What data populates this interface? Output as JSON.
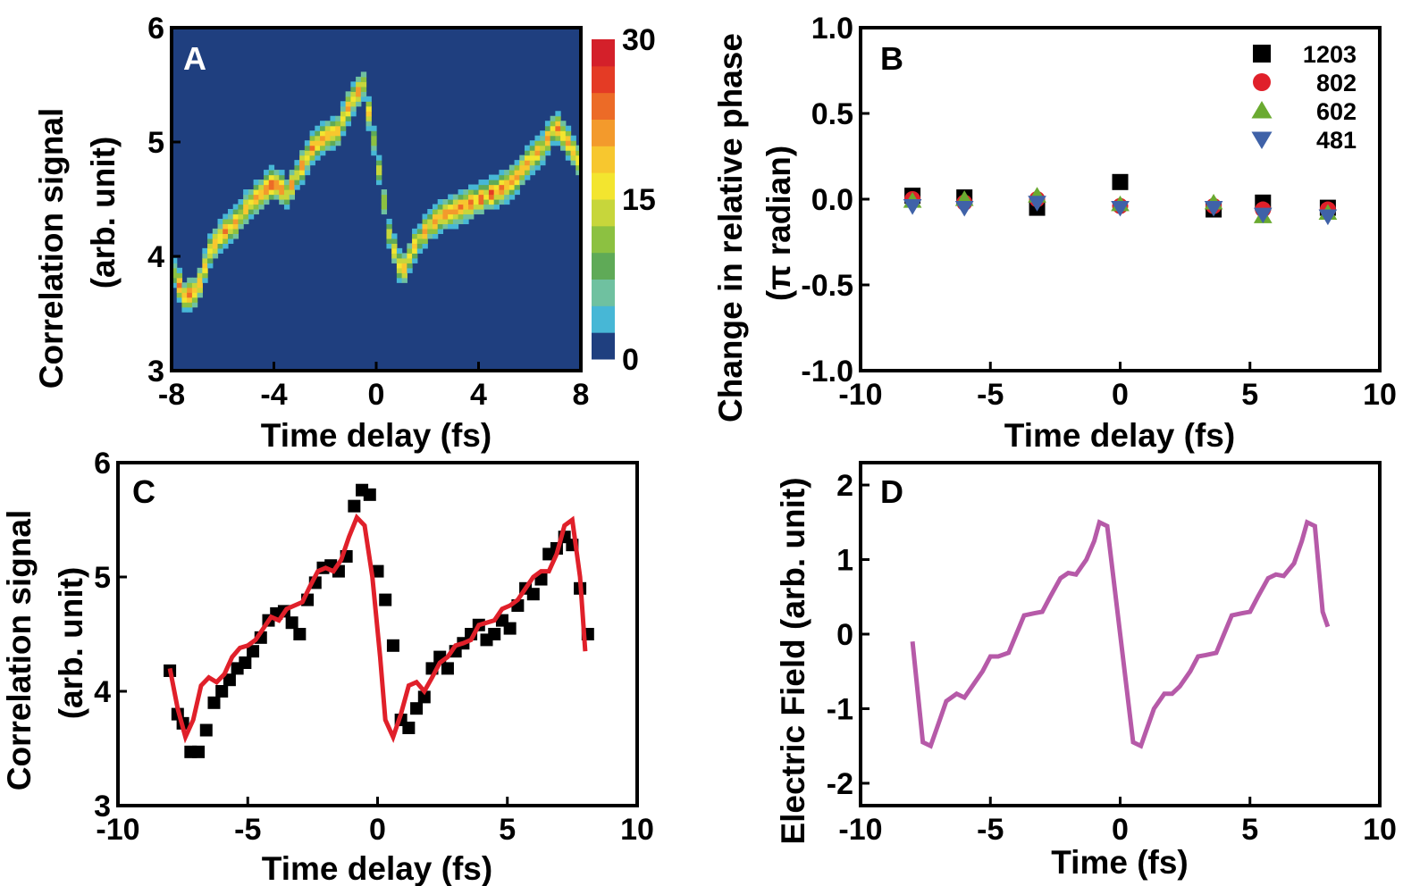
{
  "panels": {
    "A": {
      "label": "A"
    },
    "B": {
      "label": "B"
    },
    "C": {
      "label": "C"
    },
    "D": {
      "label": "D"
    }
  },
  "chart_data": [
    {
      "panel": "A",
      "type": "heatmap",
      "xlabel": "Time delay (fs)",
      "ylabel_line1": "Correlation signal",
      "ylabel_line2": "(arb. unit)",
      "xlim": [
        -8,
        8
      ],
      "ylim": [
        3,
        6
      ],
      "xticks": [
        "-8",
        "-4",
        "0",
        "4",
        "8"
      ],
      "yticks": [
        "3",
        "4",
        "5",
        "6"
      ],
      "colorbar": {
        "range": [
          0,
          30
        ],
        "ticks": [
          "0",
          "15",
          "30"
        ],
        "colors": [
          "#1f3f7f",
          "#47b7d6",
          "#6fc1a0",
          "#5faa57",
          "#8cc141",
          "#c7d63b",
          "#f3e52f",
          "#f7c72f",
          "#f39a2c",
          "#ec6b27",
          "#e43b25",
          "#d4202a"
        ]
      },
      "ridge": {
        "x": [
          -8,
          -7.5,
          -7,
          -6.5,
          -6,
          -5.5,
          -5,
          -4.5,
          -4,
          -3.5,
          -3,
          -2.5,
          -2,
          -1.5,
          -1,
          -0.5,
          0,
          0.5,
          1,
          1.5,
          2,
          2.5,
          3,
          3.5,
          4,
          4.5,
          5,
          5.5,
          6,
          6.5,
          7,
          7.5,
          8
        ],
        "y": [
          3.9,
          3.65,
          3.7,
          4.05,
          4.2,
          4.3,
          4.45,
          4.55,
          4.65,
          4.55,
          4.75,
          4.95,
          5.05,
          5.1,
          5.35,
          5.5,
          4.9,
          4.2,
          3.85,
          4.1,
          4.25,
          4.35,
          4.4,
          4.45,
          4.5,
          4.55,
          4.6,
          4.7,
          4.85,
          4.95,
          5.15,
          5.0,
          4.8
        ],
        "intensity": [
          18,
          26,
          22,
          20,
          24,
          22,
          20,
          23,
          28,
          21,
          22,
          24,
          22,
          20,
          23,
          21,
          14,
          16,
          22,
          20,
          22,
          23,
          24,
          25,
          25,
          26,
          24,
          24,
          22,
          21,
          24,
          22,
          20
        ]
      }
    },
    {
      "panel": "B",
      "type": "scatter",
      "xlabel": "Time delay (fs)",
      "ylabel_line1": "Change in relative phase",
      "ylabel_line2": "(π radian)",
      "xlim": [
        -10,
        10
      ],
      "ylim": [
        -1.0,
        1.0
      ],
      "xticks": [
        "-10",
        "-5",
        "0",
        "5",
        "10"
      ],
      "yticks": [
        "-1.0",
        "-0.5",
        "0.0",
        "0.5",
        "1.0"
      ],
      "legend_position": "top-right",
      "series": [
        {
          "name": "1203",
          "marker": "square",
          "color": "#000000",
          "x": [
            -8,
            -6,
            -3.2,
            0,
            3.6,
            5.5,
            8
          ],
          "y": [
            0.02,
            0.01,
            -0.05,
            0.1,
            -0.06,
            -0.02,
            -0.05
          ]
        },
        {
          "name": "802",
          "marker": "circle",
          "color": "#e0202a",
          "x": [
            -8,
            -6,
            -3.2,
            0,
            3.6,
            5.5,
            8
          ],
          "y": [
            0.0,
            -0.02,
            0.0,
            -0.04,
            -0.04,
            -0.06,
            -0.06
          ]
        },
        {
          "name": "602",
          "marker": "triangle-up",
          "color": "#6aaa30",
          "x": [
            -8,
            -6,
            -3.2,
            0,
            3.6,
            5.5,
            8
          ],
          "y": [
            -0.01,
            0.0,
            0.02,
            -0.03,
            -0.02,
            -0.1,
            -0.08
          ]
        },
        {
          "name": "481",
          "marker": "triangle-down",
          "color": "#3f62a8",
          "x": [
            -8,
            -6,
            -3.2,
            0,
            3.6,
            5.5,
            8
          ],
          "y": [
            -0.04,
            -0.05,
            -0.02,
            -0.05,
            -0.05,
            -0.09,
            -0.1
          ]
        }
      ]
    },
    {
      "panel": "C",
      "type": "scatter",
      "xlabel": "Time delay (fs)",
      "ylabel_line1": "Correlation signal",
      "ylabel_line2": "(arb. unit)",
      "xlim": [
        -10,
        10
      ],
      "ylim": [
        3,
        6
      ],
      "xticks": [
        "-10",
        "-5",
        "0",
        "5",
        "10"
      ],
      "yticks": [
        "3",
        "4",
        "5",
        "6"
      ],
      "series": [
        {
          "marker": "square",
          "color": "#000000",
          "x": [
            -8,
            -7.7,
            -7.5,
            -7.2,
            -6.9,
            -6.6,
            -6.3,
            -6,
            -5.7,
            -5.4,
            -5.1,
            -4.8,
            -4.5,
            -4.2,
            -3.9,
            -3.6,
            -3.3,
            -3,
            -2.7,
            -2.4,
            -2.1,
            -1.8,
            -1.5,
            -1.2,
            -0.9,
            -0.6,
            -0.3,
            0,
            0.3,
            0.6,
            0.9,
            1.2,
            1.5,
            1.8,
            2.1,
            2.4,
            2.7,
            3,
            3.3,
            3.6,
            3.9,
            4.2,
            4.5,
            4.8,
            5.1,
            5.4,
            5.7,
            6,
            6.3,
            6.6,
            6.9,
            7.2,
            7.5,
            7.8,
            8.1
          ],
          "y": [
            4.18,
            3.8,
            3.72,
            3.47,
            3.47,
            3.66,
            3.9,
            4.0,
            4.1,
            4.2,
            4.25,
            4.35,
            4.47,
            4.62,
            4.68,
            4.7,
            4.6,
            4.5,
            4.8,
            4.95,
            5.08,
            5.1,
            5.05,
            5.18,
            5.62,
            5.76,
            5.72,
            5.05,
            4.8,
            4.4,
            3.75,
            3.68,
            3.85,
            3.95,
            4.2,
            4.3,
            4.2,
            4.35,
            4.42,
            4.5,
            4.58,
            4.45,
            4.5,
            4.62,
            4.55,
            4.75,
            4.9,
            4.85,
            4.98,
            5.2,
            5.25,
            5.35,
            5.28,
            4.9,
            4.5
          ]
        },
        {
          "marker": "line",
          "color": "#e0202a",
          "x": [
            -8,
            -7.7,
            -7.4,
            -7.1,
            -6.8,
            -6.5,
            -6.2,
            -5.9,
            -5.6,
            -5.3,
            -5.0,
            -4.7,
            -4.4,
            -4.1,
            -3.8,
            -3.5,
            -3.2,
            -2.9,
            -2.6,
            -2.3,
            -2.0,
            -1.7,
            -1.4,
            -1.1,
            -0.8,
            -0.5,
            -0.2,
            0.1,
            0.3,
            0.6,
            0.9,
            1.2,
            1.5,
            1.8,
            2.1,
            2.4,
            2.7,
            3.0,
            3.3,
            3.6,
            3.9,
            4.2,
            4.5,
            4.8,
            5.1,
            5.4,
            5.7,
            6.0,
            6.3,
            6.6,
            6.9,
            7.2,
            7.5,
            7.8,
            8.0
          ],
          "y": [
            4.2,
            3.85,
            3.6,
            3.75,
            4.05,
            4.12,
            4.08,
            4.15,
            4.3,
            4.38,
            4.4,
            4.45,
            4.55,
            4.65,
            4.62,
            4.72,
            4.75,
            4.78,
            4.92,
            5.05,
            5.08,
            5.05,
            5.15,
            5.35,
            5.52,
            5.45,
            5.0,
            4.3,
            3.75,
            3.6,
            3.8,
            4.05,
            4.08,
            4.0,
            4.12,
            4.25,
            4.3,
            4.4,
            4.42,
            4.45,
            4.58,
            4.6,
            4.62,
            4.72,
            4.75,
            4.8,
            4.9,
            5.0,
            5.05,
            5.05,
            5.2,
            5.45,
            5.5,
            5.0,
            4.35
          ]
        }
      ]
    },
    {
      "panel": "D",
      "type": "line",
      "xlabel": "Time (fs)",
      "ylabel": "Electric Field (arb. unit)",
      "xlim": [
        -10,
        10
      ],
      "ylim": [
        -2.3,
        2.3
      ],
      "xticks": [
        "-10",
        "-5",
        "0",
        "5",
        "10"
      ],
      "yticks": [
        "-2",
        "-1",
        "0",
        "1",
        "2"
      ],
      "series": [
        {
          "color": "#b65aa8",
          "x": [
            -8,
            -7.6,
            -7.3,
            -7.0,
            -6.7,
            -6.3,
            -6.0,
            -5.7,
            -5.3,
            -5.0,
            -4.7,
            -4.3,
            -4.0,
            -3.7,
            -3.3,
            -3.0,
            -2.7,
            -2.3,
            -2.0,
            -1.7,
            -1.3,
            -1.0,
            -0.8,
            -0.5,
            0.0,
            0.5,
            0.8,
            1.0,
            1.3,
            1.7,
            2.0,
            2.3,
            2.7,
            3.0,
            3.3,
            3.7,
            4.0,
            4.3,
            4.7,
            5.0,
            5.3,
            5.7,
            6.0,
            6.3,
            6.7,
            7.0,
            7.2,
            7.5,
            7.8,
            8.0
          ],
          "y": [
            -0.1,
            -1.45,
            -1.5,
            -1.2,
            -0.9,
            -0.8,
            -0.85,
            -0.7,
            -0.5,
            -0.3,
            -0.3,
            -0.25,
            0.0,
            0.25,
            0.28,
            0.3,
            0.5,
            0.75,
            0.82,
            0.8,
            1.0,
            1.25,
            1.5,
            1.45,
            0.0,
            -1.45,
            -1.5,
            -1.3,
            -1.0,
            -0.8,
            -0.8,
            -0.7,
            -0.5,
            -0.3,
            -0.28,
            -0.25,
            0.0,
            0.25,
            0.28,
            0.3,
            0.5,
            0.75,
            0.8,
            0.78,
            0.95,
            1.25,
            1.5,
            1.45,
            0.3,
            0.1
          ]
        }
      ]
    }
  ]
}
